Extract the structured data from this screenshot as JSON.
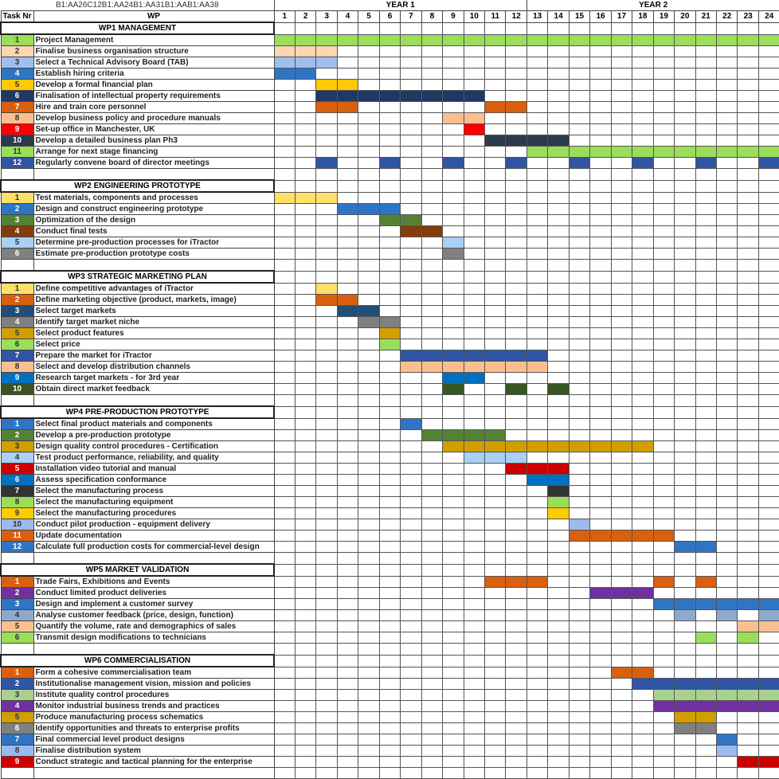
{
  "sheet": {
    "range_ref": "B1:AA26C12B1:AA24B1:AA31B1:AAB1:AA38",
    "year_labels": [
      "YEAR 1",
      "YEAR 2"
    ],
    "col_task_nr": "Task Nr",
    "col_wp": "WP",
    "months": [
      "1",
      "2",
      "3",
      "4",
      "5",
      "6",
      "7",
      "8",
      "9",
      "10",
      "11",
      "12",
      "13",
      "14",
      "15",
      "16",
      "17",
      "18",
      "19",
      "20",
      "21",
      "22",
      "23",
      "24"
    ]
  },
  "chart_data": {
    "type": "table",
    "work_packages": [
      {
        "title": "WP1 MANAGEMENT",
        "tasks": [
          {
            "nr": "1",
            "name": "Project Management",
            "color": "#9ade5a",
            "months": [
              1,
              2,
              3,
              4,
              5,
              6,
              7,
              8,
              9,
              10,
              11,
              12,
              13,
              14,
              15,
              16,
              17,
              18,
              19,
              20,
              21,
              22,
              23,
              24
            ]
          },
          {
            "nr": "2",
            "name": "Finalise business organisation structure",
            "color": "#fcd5b4",
            "months": [
              1,
              2,
              3
            ]
          },
          {
            "nr": "3",
            "name": "Select a Technical Advisory Board (TAB)",
            "color": "#9fbfef",
            "months": [
              1,
              2,
              3
            ]
          },
          {
            "nr": "4",
            "name": "Establish hiring criteria",
            "color": "#2e75c6",
            "months": [
              1,
              2
            ]
          },
          {
            "nr": "5",
            "name": "Develop a formal financial plan",
            "color": "#ffc800",
            "months": [
              3,
              4
            ]
          },
          {
            "nr": "6",
            "name": "Finalisation of intellectual property requirements",
            "color": "#1f3864",
            "months": [
              3,
              4,
              5,
              6,
              7,
              8,
              9,
              10
            ]
          },
          {
            "nr": "7",
            "name": "Hire and train core personnel",
            "color": "#d8600e",
            "months": [
              3,
              4,
              11,
              12
            ]
          },
          {
            "nr": "8",
            "name": "Develop business policy and procedure manuals",
            "color": "#fbbf8f",
            "months": [
              9,
              10
            ]
          },
          {
            "nr": "9",
            "name": "Set-up office in Manchester, UK",
            "color": "#ff0000",
            "months": [
              10
            ]
          },
          {
            "nr": "10",
            "name": "Develop a detailed business plan Ph3",
            "color": "#2b3a4e",
            "months": [
              11,
              12,
              13,
              14
            ]
          },
          {
            "nr": "11",
            "name": "Arrange for next stage financing",
            "color": "#9ade5a",
            "months": [
              13,
              14,
              15,
              16,
              17,
              18,
              19,
              20,
              21,
              22,
              23,
              24
            ]
          },
          {
            "nr": "12",
            "name": "Regularly convene board of director meetings",
            "color": "#2f55a4",
            "months": [
              3,
              6,
              9,
              12,
              15,
              18,
              21,
              24
            ]
          }
        ]
      },
      {
        "title": "WP2 ENGINEERING PROTOTYPE",
        "tasks": [
          {
            "nr": "1",
            "name": "Test materials, components and processes",
            "color": "#ffe066",
            "months": [
              1,
              2,
              3
            ]
          },
          {
            "nr": "2",
            "name": "Design and construct engineering prototype",
            "color": "#2e75c6",
            "months": [
              4,
              5,
              6
            ]
          },
          {
            "nr": "3",
            "name": "Optimization of the design",
            "color": "#548235",
            "months": [
              6,
              7
            ]
          },
          {
            "nr": "4",
            "name": "Conduct final tests",
            "color": "#843c0c",
            "months": [
              7,
              8
            ]
          },
          {
            "nr": "5",
            "name": "Determine pre-production processes for  iTractor",
            "color": "#a9d0f5",
            "months": [
              9
            ]
          },
          {
            "nr": "6",
            "name": "Estimate pre-production prototype costs",
            "color": "#808080",
            "months": [
              9
            ]
          }
        ]
      },
      {
        "title": "WP3 STRATEGIC MARKETING PLAN",
        "tasks": [
          {
            "nr": "1",
            "name": "Define competitive advantages of iTractor",
            "color": "#ffe066",
            "months": [
              3
            ]
          },
          {
            "nr": "2",
            "name": "Define marketing objective (product, markets, image)",
            "color": "#d8600e",
            "months": [
              3,
              4
            ]
          },
          {
            "nr": "3",
            "name": "Select target markets",
            "color": "#1f4e79",
            "months": [
              4,
              5
            ]
          },
          {
            "nr": "4",
            "name": "Identify target market niche",
            "color": "#808080",
            "months": [
              5,
              6
            ]
          },
          {
            "nr": "5",
            "name": "Select product features",
            "color": "#d39e00",
            "months": [
              6
            ]
          },
          {
            "nr": "6",
            "name": "Select price",
            "color": "#9ade5a",
            "months": [
              6
            ]
          },
          {
            "nr": "7",
            "name": "Prepare the market for iTractor",
            "color": "#2f55a4",
            "months": [
              7,
              8,
              9,
              10,
              11,
              12,
              13
            ]
          },
          {
            "nr": "8",
            "name": "Select and develop distribution channels",
            "color": "#fbbf8f",
            "months": [
              7,
              8,
              9,
              10,
              11,
              12,
              13
            ]
          },
          {
            "nr": "9",
            "name": "Research target markets - for 3rd year",
            "color": "#0070c0",
            "months": [
              9,
              10
            ]
          },
          {
            "nr": "10",
            "name": "Obtain direct market feedback",
            "color": "#375623",
            "months": [
              9,
              12,
              14
            ]
          }
        ]
      },
      {
        "title": "WP4 PRE-PRODUCTION PROTOTYPE",
        "tasks": [
          {
            "nr": "1",
            "name": "Select final product materials and components",
            "color": "#2e75c6",
            "months": [
              7
            ]
          },
          {
            "nr": "2",
            "name": "Develop a pre-production prototype",
            "color": "#548235",
            "months": [
              8,
              9,
              10,
              11
            ]
          },
          {
            "nr": "3",
            "name": "Design quality control procedures - Certification",
            "color": "#d39e00",
            "months": [
              9,
              10,
              11,
              12,
              13,
              14,
              15,
              16,
              17,
              18
            ]
          },
          {
            "nr": "4",
            "name": "Test product performance, reliability, and quality",
            "color": "#a9d0f5",
            "months": [
              10,
              11,
              12
            ]
          },
          {
            "nr": "5",
            "name": "Installation video tutorial and manual",
            "color": "#cc0000",
            "months": [
              12,
              13,
              14
            ]
          },
          {
            "nr": "6",
            "name": "Assess specification conformance",
            "color": "#0070c0",
            "months": [
              13,
              14
            ]
          },
          {
            "nr": "7",
            "name": "Select the manufacturing process",
            "color": "#333333",
            "months": [
              14
            ]
          },
          {
            "nr": "8",
            "name": "Select the manufacturing equipment",
            "color": "#9ade5a",
            "months": [
              14
            ]
          },
          {
            "nr": "9",
            "name": "Select the manufacturing procedures",
            "color": "#ffcc00",
            "months": [
              14
            ]
          },
          {
            "nr": "10",
            "name": "Conduct pilot production - equipment delivery",
            "color": "#9bbbef",
            "months": [
              15
            ]
          },
          {
            "nr": "11",
            "name": "Update documentation",
            "color": "#d8600e",
            "months": [
              15,
              16,
              17,
              18,
              19
            ]
          },
          {
            "nr": "12",
            "name": "Calculate full production costs for commercial-level design",
            "color": "#2e75c6",
            "months": [
              20,
              21
            ]
          }
        ]
      },
      {
        "title": "WP5 MARKET VALIDATION",
        "tasks": [
          {
            "nr": "1",
            "name": "Trade Fairs, Exhibitions and Events",
            "color": "#d8600e",
            "months": [
              11,
              12,
              13,
              19,
              21
            ]
          },
          {
            "nr": "2",
            "name": "Conduct limited product deliveries",
            "color": "#7030a0",
            "months": [
              16,
              17,
              18
            ]
          },
          {
            "nr": "3",
            "name": "Design and implement a customer survey",
            "color": "#2e75c6",
            "months": [
              19,
              20,
              21,
              22,
              23,
              24
            ]
          },
          {
            "nr": "4",
            "name": "Analyse customer feedback (price, design, function)",
            "color": "#8ea9cc",
            "months": [
              20,
              22,
              24
            ]
          },
          {
            "nr": "5",
            "name": "Quantify the volume, rate and demographics of sales",
            "color": "#fbbf8f",
            "months": [
              23,
              24
            ]
          },
          {
            "nr": "6",
            "name": "Transmit design modifications to technicians",
            "color": "#9ade5a",
            "months": [
              21,
              23
            ]
          }
        ]
      },
      {
        "title": "WP6 COMMERCIALISATION",
        "tasks": [
          {
            "nr": "1",
            "name": "Form a cohesive commercialisation team",
            "color": "#d8600e",
            "months": [
              17,
              18
            ]
          },
          {
            "nr": "2",
            "name": "Institutionalise management vision, mission and policies",
            "color": "#2f55a4",
            "months": [
              18,
              19,
              20,
              21,
              22,
              23,
              24
            ]
          },
          {
            "nr": "3",
            "name": "Institute quality control procedures",
            "color": "#a9d18e",
            "months": [
              19,
              20,
              21,
              22,
              23,
              24
            ]
          },
          {
            "nr": "4",
            "name": "Monitor industrial business trends and practices",
            "color": "#7030a0",
            "months": [
              19,
              20,
              21,
              22,
              23,
              24
            ]
          },
          {
            "nr": "5",
            "name": "Produce manufacturing process schematics",
            "color": "#d39e00",
            "months": [
              20,
              21
            ]
          },
          {
            "nr": "6",
            "name": "Identify opportunities and threats to enterprise profits",
            "color": "#808080",
            "months": [
              20,
              21
            ]
          },
          {
            "nr": "7",
            "name": "Final commercial level product designs",
            "color": "#2e75c6",
            "months": [
              22
            ]
          },
          {
            "nr": "8",
            "name": "Finalise distribution system",
            "color": "#9bbbef",
            "months": [
              22
            ]
          },
          {
            "nr": "9",
            "name": "Conduct strategic and tactical planning for the enterprise",
            "color": "#cc0000",
            "months": [
              23,
              24
            ]
          }
        ]
      }
    ]
  }
}
